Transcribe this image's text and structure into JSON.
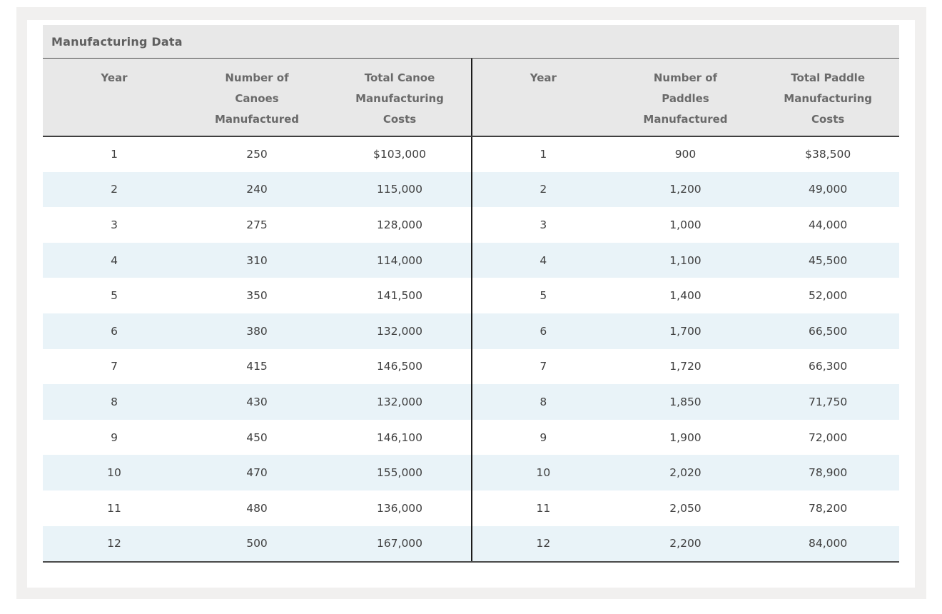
{
  "title": "Manufacturing Data",
  "colors": {
    "panel_bg": "#f1f0ef",
    "card_bg": "#ffffff",
    "header_bg": "#e8e8e8",
    "stripe_bg": "#e9f3f8",
    "border_mid": "#4a4a4a",
    "border_dark": "#3f3f3f",
    "divider": "#1c1c1c",
    "header_text": "#6a6a6a",
    "data_text": "#3f3f3f",
    "title_text": "#5f5f5f"
  },
  "tables": [
    {
      "name": "canoes",
      "columns": [
        [
          "Year"
        ],
        [
          "Number of",
          "Canoes",
          "Manufactured"
        ],
        [
          "Total Canoe",
          "Manufacturing",
          "Costs"
        ]
      ],
      "rows": [
        [
          "1",
          "250",
          "$103,000"
        ],
        [
          "2",
          "240",
          "115,000"
        ],
        [
          "3",
          "275",
          "128,000"
        ],
        [
          "4",
          "310",
          "114,000"
        ],
        [
          "5",
          "350",
          "141,500"
        ],
        [
          "6",
          "380",
          "132,000"
        ],
        [
          "7",
          "415",
          "146,500"
        ],
        [
          "8",
          "430",
          "132,000"
        ],
        [
          "9",
          "450",
          "146,100"
        ],
        [
          "10",
          "470",
          "155,000"
        ],
        [
          "11",
          "480",
          "136,000"
        ],
        [
          "12",
          "500",
          "167,000"
        ]
      ]
    },
    {
      "name": "paddles",
      "columns": [
        [
          "Year"
        ],
        [
          "Number of",
          "Paddles",
          "Manufactured"
        ],
        [
          "Total Paddle",
          "Manufacturing",
          "Costs"
        ]
      ],
      "rows": [
        [
          "1",
          "900",
          "$38,500"
        ],
        [
          "2",
          "1,200",
          "49,000"
        ],
        [
          "3",
          "1,000",
          "44,000"
        ],
        [
          "4",
          "1,100",
          "45,500"
        ],
        [
          "5",
          "1,400",
          "52,000"
        ],
        [
          "6",
          "1,700",
          "66,500"
        ],
        [
          "7",
          "1,720",
          "66,300"
        ],
        [
          "8",
          "1,850",
          "71,750"
        ],
        [
          "9",
          "1,900",
          "72,000"
        ],
        [
          "10",
          "2,020",
          "78,900"
        ],
        [
          "11",
          "2,050",
          "78,200"
        ],
        [
          "12",
          "2,200",
          "84,000"
        ]
      ]
    }
  ],
  "chart_data": [
    {
      "type": "table",
      "title": "Manufacturing Data — Canoes",
      "columns": [
        "Year",
        "Number of Canoes Manufactured",
        "Total Canoe Manufacturing Costs"
      ],
      "rows": [
        [
          1,
          250,
          103000
        ],
        [
          2,
          240,
          115000
        ],
        [
          3,
          275,
          128000
        ],
        [
          4,
          310,
          114000
        ],
        [
          5,
          350,
          141500
        ],
        [
          6,
          380,
          132000
        ],
        [
          7,
          415,
          146500
        ],
        [
          8,
          430,
          132000
        ],
        [
          9,
          450,
          146100
        ],
        [
          10,
          470,
          155000
        ],
        [
          11,
          480,
          136000
        ],
        [
          12,
          500,
          167000
        ]
      ]
    },
    {
      "type": "table",
      "title": "Manufacturing Data — Paddles",
      "columns": [
        "Year",
        "Number of Paddles Manufactured",
        "Total Paddle Manufacturing Costs"
      ],
      "rows": [
        [
          1,
          900,
          38500
        ],
        [
          2,
          1200,
          49000
        ],
        [
          3,
          1000,
          44000
        ],
        [
          4,
          1100,
          45500
        ],
        [
          5,
          1400,
          52000
        ],
        [
          6,
          1700,
          66500
        ],
        [
          7,
          1720,
          66300
        ],
        [
          8,
          1850,
          71750
        ],
        [
          9,
          1900,
          72000
        ],
        [
          10,
          2020,
          78900
        ],
        [
          11,
          2050,
          78200
        ],
        [
          12,
          2200,
          84000
        ]
      ]
    }
  ]
}
